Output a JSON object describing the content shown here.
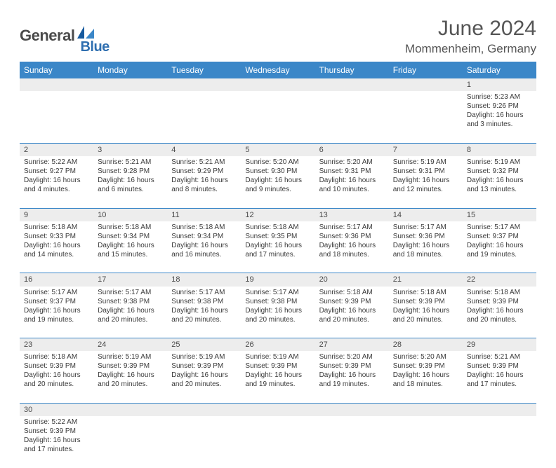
{
  "logo": {
    "dark": "General",
    "blue": "Blue"
  },
  "title": "June 2024",
  "location": "Mommenheim, Germany",
  "colors": {
    "header_bg": "#3b87c8",
    "header_text": "#ffffff",
    "daynum_bg": "#ededed",
    "row_divider": "#3b87c8",
    "body_text": "#3a3a3a",
    "title_text": "#555555",
    "logo_dark": "#4a4a4a",
    "logo_blue": "#2f6fb0"
  },
  "weekdays": [
    "Sunday",
    "Monday",
    "Tuesday",
    "Wednesday",
    "Thursday",
    "Friday",
    "Saturday"
  ],
  "weeks": [
    {
      "nums": [
        "",
        "",
        "",
        "",
        "",
        "",
        "1"
      ],
      "cells": [
        null,
        null,
        null,
        null,
        null,
        null,
        {
          "sunrise": "Sunrise: 5:23 AM",
          "sunset": "Sunset: 9:26 PM",
          "day1": "Daylight: 16 hours",
          "day2": "and 3 minutes."
        }
      ]
    },
    {
      "nums": [
        "2",
        "3",
        "4",
        "5",
        "6",
        "7",
        "8"
      ],
      "cells": [
        {
          "sunrise": "Sunrise: 5:22 AM",
          "sunset": "Sunset: 9:27 PM",
          "day1": "Daylight: 16 hours",
          "day2": "and 4 minutes."
        },
        {
          "sunrise": "Sunrise: 5:21 AM",
          "sunset": "Sunset: 9:28 PM",
          "day1": "Daylight: 16 hours",
          "day2": "and 6 minutes."
        },
        {
          "sunrise": "Sunrise: 5:21 AM",
          "sunset": "Sunset: 9:29 PM",
          "day1": "Daylight: 16 hours",
          "day2": "and 8 minutes."
        },
        {
          "sunrise": "Sunrise: 5:20 AM",
          "sunset": "Sunset: 9:30 PM",
          "day1": "Daylight: 16 hours",
          "day2": "and 9 minutes."
        },
        {
          "sunrise": "Sunrise: 5:20 AM",
          "sunset": "Sunset: 9:31 PM",
          "day1": "Daylight: 16 hours",
          "day2": "and 10 minutes."
        },
        {
          "sunrise": "Sunrise: 5:19 AM",
          "sunset": "Sunset: 9:31 PM",
          "day1": "Daylight: 16 hours",
          "day2": "and 12 minutes."
        },
        {
          "sunrise": "Sunrise: 5:19 AM",
          "sunset": "Sunset: 9:32 PM",
          "day1": "Daylight: 16 hours",
          "day2": "and 13 minutes."
        }
      ]
    },
    {
      "nums": [
        "9",
        "10",
        "11",
        "12",
        "13",
        "14",
        "15"
      ],
      "cells": [
        {
          "sunrise": "Sunrise: 5:18 AM",
          "sunset": "Sunset: 9:33 PM",
          "day1": "Daylight: 16 hours",
          "day2": "and 14 minutes."
        },
        {
          "sunrise": "Sunrise: 5:18 AM",
          "sunset": "Sunset: 9:34 PM",
          "day1": "Daylight: 16 hours",
          "day2": "and 15 minutes."
        },
        {
          "sunrise": "Sunrise: 5:18 AM",
          "sunset": "Sunset: 9:34 PM",
          "day1": "Daylight: 16 hours",
          "day2": "and 16 minutes."
        },
        {
          "sunrise": "Sunrise: 5:18 AM",
          "sunset": "Sunset: 9:35 PM",
          "day1": "Daylight: 16 hours",
          "day2": "and 17 minutes."
        },
        {
          "sunrise": "Sunrise: 5:17 AM",
          "sunset": "Sunset: 9:36 PM",
          "day1": "Daylight: 16 hours",
          "day2": "and 18 minutes."
        },
        {
          "sunrise": "Sunrise: 5:17 AM",
          "sunset": "Sunset: 9:36 PM",
          "day1": "Daylight: 16 hours",
          "day2": "and 18 minutes."
        },
        {
          "sunrise": "Sunrise: 5:17 AM",
          "sunset": "Sunset: 9:37 PM",
          "day1": "Daylight: 16 hours",
          "day2": "and 19 minutes."
        }
      ]
    },
    {
      "nums": [
        "16",
        "17",
        "18",
        "19",
        "20",
        "21",
        "22"
      ],
      "cells": [
        {
          "sunrise": "Sunrise: 5:17 AM",
          "sunset": "Sunset: 9:37 PM",
          "day1": "Daylight: 16 hours",
          "day2": "and 19 minutes."
        },
        {
          "sunrise": "Sunrise: 5:17 AM",
          "sunset": "Sunset: 9:38 PM",
          "day1": "Daylight: 16 hours",
          "day2": "and 20 minutes."
        },
        {
          "sunrise": "Sunrise: 5:17 AM",
          "sunset": "Sunset: 9:38 PM",
          "day1": "Daylight: 16 hours",
          "day2": "and 20 minutes."
        },
        {
          "sunrise": "Sunrise: 5:17 AM",
          "sunset": "Sunset: 9:38 PM",
          "day1": "Daylight: 16 hours",
          "day2": "and 20 minutes."
        },
        {
          "sunrise": "Sunrise: 5:18 AM",
          "sunset": "Sunset: 9:39 PM",
          "day1": "Daylight: 16 hours",
          "day2": "and 20 minutes."
        },
        {
          "sunrise": "Sunrise: 5:18 AM",
          "sunset": "Sunset: 9:39 PM",
          "day1": "Daylight: 16 hours",
          "day2": "and 20 minutes."
        },
        {
          "sunrise": "Sunrise: 5:18 AM",
          "sunset": "Sunset: 9:39 PM",
          "day1": "Daylight: 16 hours",
          "day2": "and 20 minutes."
        }
      ]
    },
    {
      "nums": [
        "23",
        "24",
        "25",
        "26",
        "27",
        "28",
        "29"
      ],
      "cells": [
        {
          "sunrise": "Sunrise: 5:18 AM",
          "sunset": "Sunset: 9:39 PM",
          "day1": "Daylight: 16 hours",
          "day2": "and 20 minutes."
        },
        {
          "sunrise": "Sunrise: 5:19 AM",
          "sunset": "Sunset: 9:39 PM",
          "day1": "Daylight: 16 hours",
          "day2": "and 20 minutes."
        },
        {
          "sunrise": "Sunrise: 5:19 AM",
          "sunset": "Sunset: 9:39 PM",
          "day1": "Daylight: 16 hours",
          "day2": "and 20 minutes."
        },
        {
          "sunrise": "Sunrise: 5:19 AM",
          "sunset": "Sunset: 9:39 PM",
          "day1": "Daylight: 16 hours",
          "day2": "and 19 minutes."
        },
        {
          "sunrise": "Sunrise: 5:20 AM",
          "sunset": "Sunset: 9:39 PM",
          "day1": "Daylight: 16 hours",
          "day2": "and 19 minutes."
        },
        {
          "sunrise": "Sunrise: 5:20 AM",
          "sunset": "Sunset: 9:39 PM",
          "day1": "Daylight: 16 hours",
          "day2": "and 18 minutes."
        },
        {
          "sunrise": "Sunrise: 5:21 AM",
          "sunset": "Sunset: 9:39 PM",
          "day1": "Daylight: 16 hours",
          "day2": "and 17 minutes."
        }
      ]
    },
    {
      "nums": [
        "30",
        "",
        "",
        "",
        "",
        "",
        ""
      ],
      "cells": [
        {
          "sunrise": "Sunrise: 5:22 AM",
          "sunset": "Sunset: 9:39 PM",
          "day1": "Daylight: 16 hours",
          "day2": "and 17 minutes."
        },
        null,
        null,
        null,
        null,
        null,
        null
      ]
    }
  ]
}
